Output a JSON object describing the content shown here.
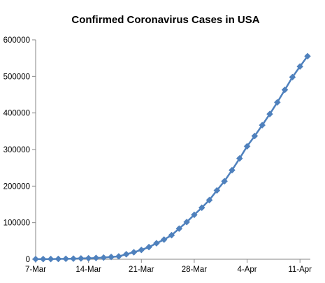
{
  "chart_data": {
    "type": "line",
    "title": "Confirmed Coronavirus Cases in USA",
    "xlabel": "",
    "ylabel": "",
    "ylim": [
      0,
      600000
    ],
    "y_ticks": [
      "0",
      "100000",
      "200000",
      "300000",
      "400000",
      "500000",
      "600000"
    ],
    "x_ticks": [
      "7-Mar",
      "14-Mar",
      "21-Mar",
      "28-Mar",
      "4-Apr",
      "11-Apr"
    ],
    "grid": false,
    "legend": "none",
    "series": [
      {
        "color": "#4F81BD",
        "marker": "diamond",
        "points": [
          {
            "x": "7-Mar",
            "y": 400
          },
          {
            "x": "8-Mar",
            "y": 500
          },
          {
            "x": "9-Mar",
            "y": 600
          },
          {
            "x": "10-Mar",
            "y": 900
          },
          {
            "x": "11-Mar",
            "y": 1200
          },
          {
            "x": "12-Mar",
            "y": 1600
          },
          {
            "x": "13-Mar",
            "y": 2200
          },
          {
            "x": "14-Mar",
            "y": 2700
          },
          {
            "x": "15-Mar",
            "y": 3500
          },
          {
            "x": "16-Mar",
            "y": 4600
          },
          {
            "x": "17-Mar",
            "y": 6300
          },
          {
            "x": "18-Mar",
            "y": 7800
          },
          {
            "x": "19-Mar",
            "y": 13700
          },
          {
            "x": "20-Mar",
            "y": 19100
          },
          {
            "x": "21-Mar",
            "y": 25500
          },
          {
            "x": "22-Mar",
            "y": 33300
          },
          {
            "x": "23-Mar",
            "y": 43800
          },
          {
            "x": "24-Mar",
            "y": 53700
          },
          {
            "x": "25-Mar",
            "y": 65800
          },
          {
            "x": "26-Mar",
            "y": 83800
          },
          {
            "x": "27-Mar",
            "y": 101700
          },
          {
            "x": "28-Mar",
            "y": 121500
          },
          {
            "x": "29-Mar",
            "y": 140900
          },
          {
            "x": "30-Mar",
            "y": 161800
          },
          {
            "x": "31-Mar",
            "y": 188200
          },
          {
            "x": "1-Apr",
            "y": 213400
          },
          {
            "x": "2-Apr",
            "y": 243500
          },
          {
            "x": "3-Apr",
            "y": 275600
          },
          {
            "x": "4-Apr",
            "y": 308900
          },
          {
            "x": "5-Apr",
            "y": 337100
          },
          {
            "x": "6-Apr",
            "y": 366700
          },
          {
            "x": "7-Apr",
            "y": 397000
          },
          {
            "x": "8-Apr",
            "y": 429100
          },
          {
            "x": "9-Apr",
            "y": 463400
          },
          {
            "x": "10-Apr",
            "y": 497900
          },
          {
            "x": "11-Apr",
            "y": 527100
          },
          {
            "x": "12-Apr",
            "y": 555300
          }
        ]
      }
    ]
  }
}
